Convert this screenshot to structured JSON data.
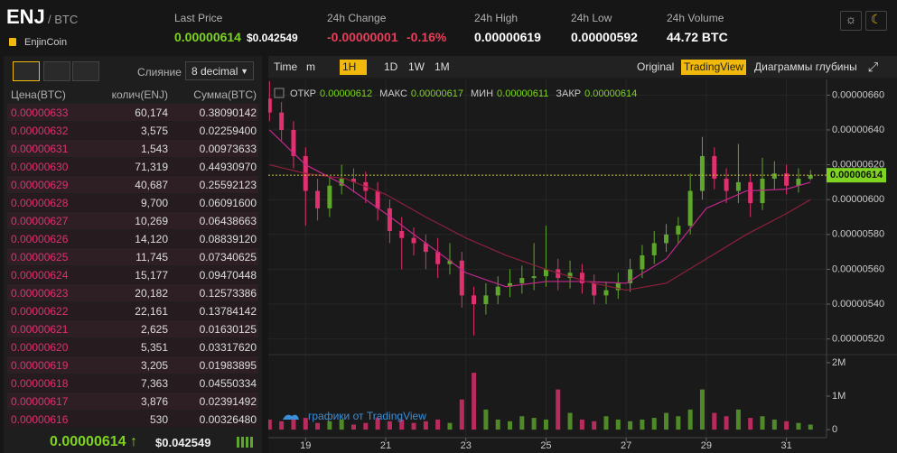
{
  "header": {
    "base": "ENJ",
    "quote": "/ BTC",
    "name": "EnjinCoin",
    "stats": [
      {
        "label": "Last Price",
        "value": "0.00000614",
        "extra": "$0.042549"
      },
      {
        "label": "24h Change",
        "value": "-0.00000001",
        "extra": "-0.16%"
      },
      {
        "label": "24h High",
        "value": "0.00000619"
      },
      {
        "label": "24h Low",
        "value": "0.00000592"
      },
      {
        "label": "24h Volume",
        "value": "44.72 BTC"
      }
    ]
  },
  "order_book": {
    "merge_label": "Слияние",
    "decimals": "8 decimal",
    "columns": [
      "Цена(BTC)",
      "колич(ENJ)",
      "Сумма(BTC)"
    ],
    "rows": [
      [
        "0.00000633",
        "60,174",
        "0.38090142"
      ],
      [
        "0.00000632",
        "3,575",
        "0.02259400"
      ],
      [
        "0.00000631",
        "1,543",
        "0.00973633"
      ],
      [
        "0.00000630",
        "71,319",
        "0.44930970"
      ],
      [
        "0.00000629",
        "40,687",
        "0.25592123"
      ],
      [
        "0.00000628",
        "9,700",
        "0.06091600"
      ],
      [
        "0.00000627",
        "10,269",
        "0.06438663"
      ],
      [
        "0.00000626",
        "14,120",
        "0.08839120"
      ],
      [
        "0.00000625",
        "11,745",
        "0.07340625"
      ],
      [
        "0.00000624",
        "15,177",
        "0.09470448"
      ],
      [
        "0.00000623",
        "20,182",
        "0.12573386"
      ],
      [
        "0.00000622",
        "22,161",
        "0.13784142"
      ],
      [
        "0.00000621",
        "2,625",
        "0.01630125"
      ],
      [
        "0.00000620",
        "5,351",
        "0.03317620"
      ],
      [
        "0.00000619",
        "3,205",
        "0.01983895"
      ],
      [
        "0.00000618",
        "7,363",
        "0.04550334"
      ],
      [
        "0.00000617",
        "3,876",
        "0.02391492"
      ],
      [
        "0.00000616",
        "530",
        "0.00326480"
      ]
    ],
    "last_price": "0.00000614",
    "last_usd": "$0.042549"
  },
  "toolbar": {
    "left": [
      "Time",
      "m",
      "1H",
      "1D",
      "1W",
      "1M"
    ],
    "right": [
      "Original",
      "TradingView",
      "Диаграммы глубины"
    ],
    "active_interval": "1H",
    "active_view": "TradingView"
  },
  "chart_data": {
    "type": "candlestick",
    "legend": {
      "open_label": "ОТКР",
      "open": "0.00000612",
      "high_label": "МАКС",
      "high": "0.00000617",
      "low_label": "МИН",
      "low": "0.00000611",
      "close_label": "ЗАКР",
      "close": "0.00000614"
    },
    "watermark": "графики от TradingView",
    "up_color": "#5ea62c",
    "down_color": "#e0306f",
    "x": [
      18.1,
      18.4,
      18.7,
      19.0,
      19.3,
      19.6,
      19.9,
      20.2,
      20.5,
      20.8,
      21.1,
      21.4,
      21.7,
      22.0,
      22.3,
      22.6,
      22.9,
      23.2,
      23.5,
      23.8,
      24.1,
      24.4,
      24.7,
      25.0,
      25.3,
      25.6,
      25.9,
      26.2,
      26.5,
      26.8,
      27.1,
      27.4,
      27.7,
      28.0,
      28.3,
      28.6,
      28.9,
      29.2,
      29.5,
      29.8,
      30.1,
      30.4,
      30.7,
      31.0,
      31.3,
      31.6
    ],
    "open": [
      6.58e-06,
      6.5e-06,
      6.4e-06,
      6.25e-06,
      6.05e-06,
      5.95e-06,
      6.08e-06,
      6.12e-06,
      6.1e-06,
      6.05e-06,
      5.95e-06,
      5.82e-06,
      5.78e-06,
      5.75e-06,
      5.7e-06,
      5.63e-06,
      5.65e-06,
      5.45e-06,
      5.4e-06,
      5.45e-06,
      5.5e-06,
      5.52e-06,
      5.55e-06,
      5.56e-06,
      5.6e-06,
      5.55e-06,
      5.58e-06,
      5.52e-06,
      5.45e-06,
      5.48e-06,
      5.52e-06,
      5.6e-06,
      5.68e-06,
      5.75e-06,
      5.8e-06,
      5.85e-06,
      6.05e-06,
      6.25e-06,
      6.12e-06,
      6.05e-06,
      6.1e-06,
      5.98e-06,
      6.12e-06,
      6.15e-06,
      6.08e-06,
      6.12e-06
    ],
    "high": [
      6.68e-06,
      6.56e-06,
      6.45e-06,
      6.3e-06,
      6.12e-06,
      6.13e-06,
      6.2e-06,
      6.18e-06,
      6.16e-06,
      6.1e-06,
      6e-06,
      5.9e-06,
      5.84e-06,
      5.8e-06,
      5.78e-06,
      5.75e-06,
      5.7e-06,
      5.5e-06,
      5.52e-06,
      5.56e-06,
      5.6e-06,
      5.62e-06,
      5.75e-06,
      5.85e-06,
      5.66e-06,
      5.65e-06,
      5.63e-06,
      5.57e-06,
      5.53e-06,
      5.58e-06,
      5.66e-06,
      5.74e-06,
      5.82e-06,
      5.86e-06,
      5.9e-06,
      6.15e-06,
      6.36e-06,
      6.3e-06,
      6.18e-06,
      6.32e-06,
      6.15e-06,
      6.24e-06,
      6.22e-06,
      6.2e-06,
      6.18e-06,
      6.17e-06
    ],
    "low": [
      6.45e-06,
      6.34e-06,
      6.18e-06,
      5.85e-06,
      5.88e-06,
      5.9e-06,
      6.03e-06,
      6.04e-06,
      5.98e-06,
      5.88e-06,
      5.75e-06,
      5.6e-06,
      5.68e-06,
      5.6e-06,
      5.55e-06,
      5.57e-06,
      5.38e-06,
      5.22e-06,
      5.34e-06,
      5.4e-06,
      5.44e-06,
      5.46e-06,
      5.48e-06,
      5.5e-06,
      5.48e-06,
      5.49e-06,
      5.46e-06,
      5.4e-06,
      5.4e-06,
      5.43e-06,
      5.47e-06,
      5.55e-06,
      5.63e-06,
      5.7e-06,
      5.75e-06,
      5.8e-06,
      6e-06,
      6.06e-06,
      5.98e-06,
      5.98e-06,
      5.9e-06,
      5.94e-06,
      6.06e-06,
      6.03e-06,
      6.04e-06,
      6.11e-06
    ],
    "close": [
      6.5e-06,
      6.4e-06,
      6.25e-06,
      6.05e-06,
      5.95e-06,
      6.08e-06,
      6.12e-06,
      6.1e-06,
      6.05e-06,
      5.95e-06,
      5.82e-06,
      5.78e-06,
      5.75e-06,
      5.7e-06,
      5.63e-06,
      5.65e-06,
      5.45e-06,
      5.4e-06,
      5.45e-06,
      5.5e-06,
      5.52e-06,
      5.55e-06,
      5.56e-06,
      5.6e-06,
      5.55e-06,
      5.58e-06,
      5.52e-06,
      5.45e-06,
      5.48e-06,
      5.52e-06,
      5.6e-06,
      5.68e-06,
      5.75e-06,
      5.8e-06,
      5.85e-06,
      6.05e-06,
      6.25e-06,
      6.12e-06,
      6.05e-06,
      6.1e-06,
      5.98e-06,
      6.12e-06,
      6.15e-06,
      6.08e-06,
      6.12e-06,
      6.14e-06
    ],
    "volume": [
      300000,
      250000,
      400000,
      350000,
      200000,
      250000,
      300000,
      150000,
      200000,
      350000,
      250000,
      300000,
      200000,
      250000,
      300000,
      200000,
      900000,
      1700000,
      600000,
      300000,
      250000,
      400000,
      350000,
      300000,
      1200000,
      500000,
      300000,
      250000,
      400000,
      300000,
      250000,
      300000,
      350000,
      500000,
      400000,
      600000,
      1200000,
      500000,
      400000,
      600000,
      350000,
      400000,
      300000,
      250000,
      200000,
      150000
    ],
    "moving_averages": [
      {
        "color": "#c2288c",
        "x": [
          18.1,
          19,
          20,
          21,
          22,
          23,
          24,
          25,
          26,
          27,
          28,
          29,
          30,
          31,
          31.6
        ],
        "values": [
          6.4e-06,
          6.2e-06,
          6.08e-06,
          5.92e-06,
          5.75e-06,
          5.58e-06,
          5.5e-06,
          5.53e-06,
          5.53e-06,
          5.52e-06,
          5.66e-06,
          5.95e-06,
          6.05e-06,
          6.06e-06,
          6.1e-06
        ]
      },
      {
        "color": "#8e1f3c",
        "x": [
          18.1,
          19,
          20,
          21,
          22,
          23,
          24,
          25,
          26,
          27,
          28,
          29,
          30,
          31,
          31.6
        ],
        "values": [
          6.2e-06,
          6.15e-06,
          6.12e-06,
          6.03e-06,
          5.9e-06,
          5.78e-06,
          5.68e-06,
          5.6e-06,
          5.53e-06,
          5.48e-06,
          5.52e-06,
          5.66e-06,
          5.8e-06,
          5.92e-06,
          6e-06
        ]
      }
    ],
    "last_price": {
      "value": 6.14e-06,
      "label": "0.00000614"
    },
    "xlim": [
      18.07,
      32.0
    ],
    "xticks": [
      19,
      21,
      23,
      25,
      27,
      29,
      31
    ],
    "ylim": [
      5.11e-06,
      6.69e-06
    ],
    "yticks": [
      {
        "value": 5.2e-06,
        "label": "0.00000520"
      },
      {
        "value": 5.4e-06,
        "label": "0.00000540"
      },
      {
        "value": 5.6e-06,
        "label": "0.00000560"
      },
      {
        "value": 5.8e-06,
        "label": "0.00000580"
      },
      {
        "value": 6e-06,
        "label": "0.00000600"
      },
      {
        "value": 6.2e-06,
        "label": "0.00000620"
      },
      {
        "value": 6.4e-06,
        "label": "0.00000640"
      },
      {
        "value": 6.6e-06,
        "label": "0.00000660"
      }
    ],
    "y2lim": [
      -240000,
      2240000
    ],
    "y2ticks": [
      0,
      {
        "value": 1000000,
        "label": "1M"
      },
      {
        "value": 2000000,
        "label": "2M"
      }
    ],
    "grid": true
  }
}
